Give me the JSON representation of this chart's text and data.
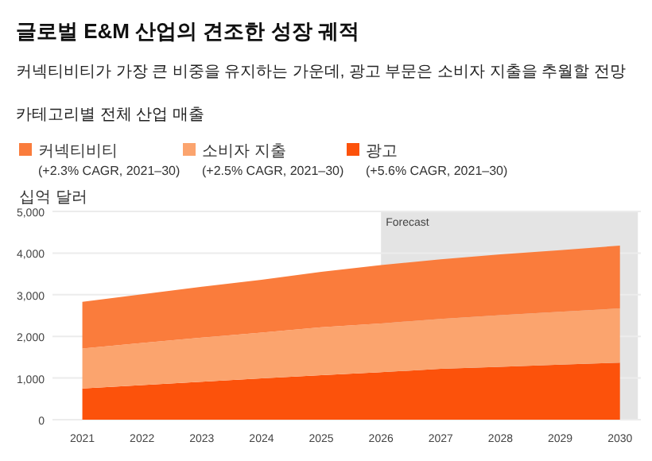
{
  "chart_data": {
    "type": "area",
    "stacked": true,
    "title": "글로벌 E&M 산업의 견조한 성장 궤적",
    "subtitle": "커넥티비티가 가장 큰 비중을 유지하는 가운데, 광고 부문은 소비자 지출을 추월할 전망",
    "annotations": [
      "카테고리별 전체 산업 매출"
    ],
    "ylabel": "십억 달러",
    "x": [
      2021,
      2022,
      2023,
      2024,
      2025,
      2026,
      2027,
      2028,
      2029,
      2030
    ],
    "series": [
      {
        "name": "광고\n(+5.6% CAGR, 2021–30)",
        "color": "#fc520b",
        "values": [
          750,
          830,
          910,
          990,
          1070,
          1140,
          1220,
          1270,
          1320,
          1370
        ]
      },
      {
        "name": "소비자 지출\n(+2.5% CAGR, 2021–30)",
        "color": "#fba46e",
        "values": [
          960,
          1010,
          1060,
          1100,
          1150,
          1170,
          1200,
          1240,
          1270,
          1300
        ]
      },
      {
        "name": "커넥티비티\n(+2.3% CAGR, 2021–30)",
        "color": "#fa7c3c",
        "values": [
          1120,
          1170,
          1220,
          1270,
          1330,
          1400,
          1430,
          1460,
          1480,
          1510
        ]
      }
    ],
    "xlim": [
      2020.5,
      2030.35
    ],
    "xticks": [
      2021,
      2022,
      2023,
      2024,
      2025,
      2026,
      2027,
      2028,
      2029,
      2030
    ],
    "ylim": [
      0,
      5000
    ],
    "yticks": [
      {
        "value": 0,
        "label": "0"
      },
      {
        "value": 1000,
        "label": "1,000"
      },
      {
        "value": 2000,
        "label": "2,000"
      },
      {
        "value": 3000,
        "label": "3,000"
      },
      {
        "value": 4000,
        "label": "4,000"
      },
      {
        "value": 5000,
        "label": "5,000"
      }
    ],
    "bands": [
      {
        "axis": "x",
        "from": 2026,
        "to": 2030.3,
        "label": "Forecast",
        "color": "#e4e4e4"
      }
    ],
    "grid": "y",
    "legend": "top left"
  }
}
